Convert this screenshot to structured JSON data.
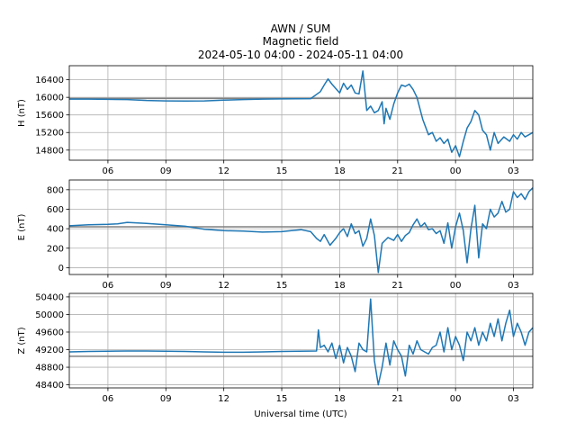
{
  "figure": {
    "title_lines": [
      "AWN / SUM",
      "Magnetic field",
      "2024-05-10 04:00 - 2024-05-11 04:00"
    ],
    "xlabel": "Universal time (UTC)",
    "x_tick_labels": [
      "06",
      "09",
      "12",
      "15",
      "18",
      "21",
      "00",
      "03"
    ]
  },
  "chart_data": [
    {
      "type": "line",
      "ylabel": "H (nT)",
      "x_unit": "hours since 2024-05-10 04:00 UTC",
      "xlim": [
        0.0,
        24.0
      ],
      "ylim": [
        14570,
        16720
      ],
      "yticks": [
        14800,
        15200,
        15600,
        16000,
        16400
      ],
      "grid": true,
      "series_color": "#1f77b4",
      "baseline": {
        "value": 15975,
        "color": "#808080"
      },
      "series": [
        {
          "x": [
            0.0,
            1.0,
            2.0,
            3.0,
            4.0,
            5.0,
            6.0,
            7.0,
            8.0,
            9.0,
            10.0,
            11.0,
            12.5,
            13.0,
            13.2,
            13.4,
            13.6,
            13.8,
            14.0,
            14.2,
            14.4,
            14.6,
            14.8,
            15.0,
            15.2,
            15.4,
            15.6,
            15.8,
            16.0,
            16.2,
            16.3,
            16.4,
            16.6,
            16.8,
            17.0,
            17.2,
            17.4,
            17.6,
            17.8,
            18.0,
            18.3,
            18.6,
            18.8,
            19.0,
            19.2,
            19.4,
            19.6,
            19.8,
            20.0,
            20.2,
            20.4,
            20.6,
            20.8,
            21.0,
            21.2,
            21.4,
            21.6,
            21.8,
            22.0,
            22.2,
            22.5,
            22.8,
            23.0,
            23.2,
            23.4,
            23.6,
            23.8,
            24.0
          ],
          "y": [
            15960,
            15960,
            15955,
            15950,
            15930,
            15920,
            15915,
            15920,
            15935,
            15950,
            15960,
            15965,
            15970,
            16130,
            16280,
            16420,
            16300,
            16200,
            16100,
            16320,
            16180,
            16280,
            16100,
            16080,
            16600,
            15700,
            15800,
            15650,
            15700,
            15900,
            15400,
            15750,
            15500,
            15850,
            16100,
            16280,
            16250,
            16300,
            16180,
            16000,
            15500,
            15150,
            15200,
            15000,
            15080,
            14950,
            15050,
            14750,
            14900,
            14650,
            15000,
            15300,
            15450,
            15700,
            15600,
            15250,
            15150,
            14800,
            15200,
            14950,
            15100,
            15000,
            15150,
            15050,
            15200,
            15100,
            15150,
            15200
          ]
        }
      ]
    },
    {
      "type": "line",
      "ylabel": "E (nT)",
      "x_unit": "hours since 2024-05-10 04:00 UTC",
      "xlim": [
        0.0,
        24.0
      ],
      "ylim": [
        -70,
        900
      ],
      "yticks": [
        0,
        200,
        400,
        600,
        800
      ],
      "grid": true,
      "series_color": "#1f77b4",
      "baseline": {
        "value": 420,
        "color": "#808080"
      },
      "series": [
        {
          "x": [
            0.0,
            1.0,
            2.0,
            2.5,
            3.0,
            4.0,
            5.0,
            6.0,
            7.0,
            8.0,
            9.0,
            10.0,
            11.0,
            11.5,
            12.0,
            12.5,
            12.8,
            13.0,
            13.2,
            13.5,
            13.8,
            14.0,
            14.2,
            14.4,
            14.6,
            14.8,
            15.0,
            15.2,
            15.4,
            15.6,
            15.8,
            16.0,
            16.2,
            16.5,
            16.8,
            17.0,
            17.2,
            17.4,
            17.6,
            17.8,
            18.0,
            18.2,
            18.4,
            18.6,
            18.8,
            19.0,
            19.2,
            19.4,
            19.6,
            19.8,
            20.0,
            20.2,
            20.4,
            20.6,
            20.8,
            21.0,
            21.2,
            21.4,
            21.6,
            21.8,
            22.0,
            22.2,
            22.4,
            22.6,
            22.8,
            23.0,
            23.2,
            23.4,
            23.6,
            23.8,
            24.0
          ],
          "y": [
            430,
            440,
            445,
            450,
            465,
            455,
            440,
            425,
            395,
            380,
            375,
            365,
            370,
            380,
            390,
            370,
            300,
            270,
            340,
            230,
            300,
            360,
            400,
            320,
            450,
            350,
            380,
            220,
            300,
            500,
            330,
            -50,
            250,
            310,
            280,
            340,
            270,
            330,
            360,
            440,
            500,
            420,
            460,
            390,
            400,
            350,
            380,
            250,
            460,
            200,
            420,
            560,
            380,
            50,
            400,
            640,
            100,
            450,
            400,
            600,
            520,
            560,
            680,
            570,
            600,
            780,
            720,
            760,
            700,
            780,
            820
          ]
        }
      ]
    },
    {
      "type": "line",
      "ylabel": "Z (nT)",
      "x_unit": "hours since 2024-05-10 04:00 UTC",
      "xlim": [
        0.0,
        24.0
      ],
      "ylim": [
        48330,
        50480
      ],
      "yticks": [
        48400,
        48800,
        49200,
        49600,
        50000,
        50400
      ],
      "grid": true,
      "series_color": "#1f77b4",
      "baseline": {
        "value": 49050,
        "color": "#808080"
      },
      "series": [
        {
          "x": [
            0.0,
            1.0,
            2.0,
            3.0,
            4.0,
            5.0,
            6.0,
            7.0,
            8.0,
            9.0,
            10.0,
            11.0,
            12.8,
            12.9,
            13.0,
            13.2,
            13.4,
            13.6,
            13.8,
            14.0,
            14.2,
            14.4,
            14.6,
            14.8,
            15.0,
            15.2,
            15.4,
            15.6,
            15.8,
            16.0,
            16.2,
            16.4,
            16.6,
            16.8,
            17.0,
            17.2,
            17.4,
            17.6,
            17.8,
            18.0,
            18.2,
            18.4,
            18.6,
            18.8,
            19.0,
            19.2,
            19.4,
            19.6,
            19.8,
            20.0,
            20.2,
            20.4,
            20.6,
            20.8,
            21.0,
            21.2,
            21.4,
            21.6,
            21.8,
            22.0,
            22.2,
            22.4,
            22.6,
            22.8,
            23.0,
            23.2,
            23.4,
            23.6,
            23.8,
            24.0
          ],
          "y": [
            49150,
            49160,
            49165,
            49170,
            49170,
            49165,
            49160,
            49150,
            49140,
            49140,
            49150,
            49160,
            49170,
            49650,
            49250,
            49300,
            49150,
            49350,
            49000,
            49300,
            48900,
            49250,
            49050,
            48700,
            49350,
            49200,
            49150,
            50350,
            48950,
            48400,
            48800,
            49350,
            48850,
            49400,
            49200,
            49050,
            48600,
            49300,
            49100,
            49400,
            49200,
            49150,
            49100,
            49250,
            49300,
            49600,
            49150,
            49700,
            49200,
            49500,
            49300,
            48950,
            49600,
            49400,
            49700,
            49300,
            49600,
            49400,
            49800,
            49500,
            49900,
            49400,
            49800,
            50100,
            49500,
            49800,
            49600,
            49300,
            49600,
            49700
          ]
        }
      ]
    }
  ]
}
